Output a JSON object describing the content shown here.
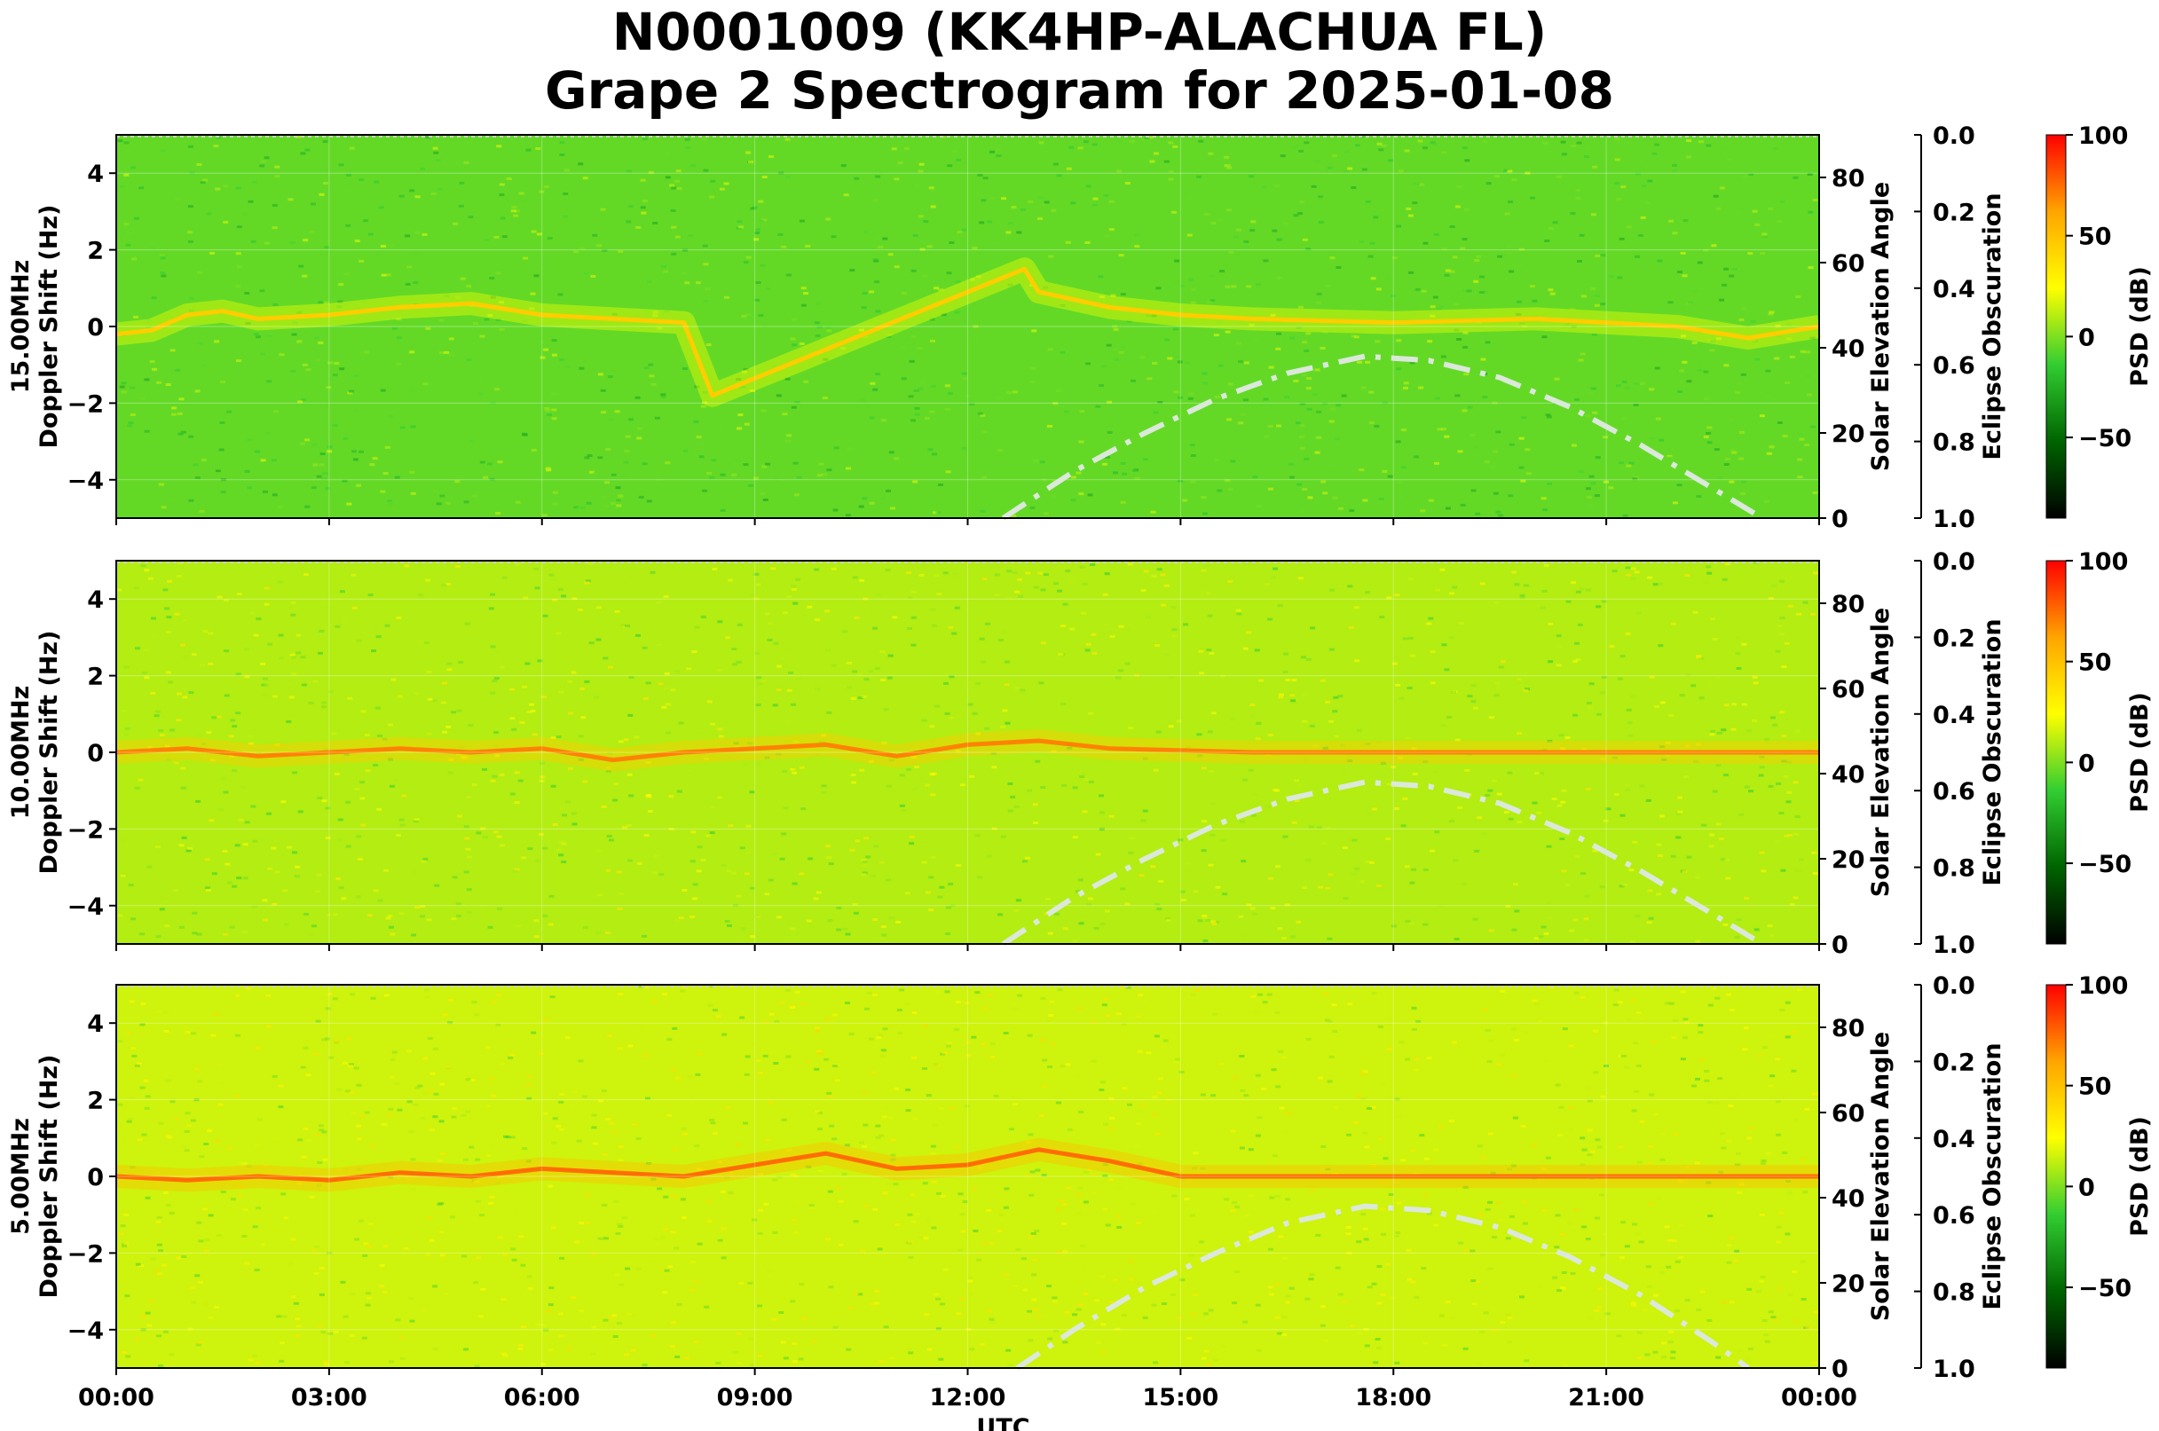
{
  "title": {
    "line1": "N0001009 (KK4HP-ALACHUA FL)",
    "line2": "Grape 2 Spectrogram for 2025-01-08"
  },
  "colors": {
    "colormap": [
      "#000000",
      "#006400",
      "#32CD32",
      "#FFFF00",
      "#FFA500",
      "#FF0000"
    ],
    "elevation_curve": "#dbe8db",
    "grid": "#ffffff"
  },
  "chart_data": [
    {
      "type": "heatmap",
      "panel_label": "15.00MHz",
      "ylabel": "Doppler Shift (Hz)",
      "xlabel": "",
      "y_ticks": [
        "−4",
        "−2",
        "0",
        "2",
        "4"
      ],
      "ylim": [
        -5,
        5
      ],
      "x_ticks": [
        "00:00",
        "03:00",
        "06:00",
        "09:00",
        "12:00",
        "15:00",
        "18:00",
        "21:00",
        "00:00"
      ],
      "xlim_hours": [
        0,
        24
      ],
      "right_axis_label": "Solar Elevation Angle",
      "right_axis_ticks": [
        "0",
        "20",
        "40",
        "60",
        "80"
      ],
      "right_axis_range": [
        0,
        90
      ],
      "eclipse_axis_label": "Eclipse Obscuration",
      "eclipse_axis_ticks": [
        "0.0",
        "0.2",
        "0.4",
        "0.6",
        "0.8",
        "1.0"
      ],
      "eclipse_axis_range": [
        0,
        1
      ],
      "colorbar_label": "PSD (dB)",
      "colorbar_ticks": [
        "100",
        "50",
        "0",
        "−50"
      ],
      "colorbar_range": [
        -90,
        100
      ],
      "background_psd": -5,
      "doppler_trace": [
        {
          "t": 0,
          "f": -0.2
        },
        {
          "t": 0.5,
          "f": -0.1
        },
        {
          "t": 1.0,
          "f": 0.3
        },
        {
          "t": 1.5,
          "f": 0.4
        },
        {
          "t": 2.0,
          "f": 0.2
        },
        {
          "t": 3.0,
          "f": 0.3
        },
        {
          "t": 4.0,
          "f": 0.5
        },
        {
          "t": 5.0,
          "f": 0.6
        },
        {
          "t": 6.0,
          "f": 0.3
        },
        {
          "t": 7.0,
          "f": 0.2
        },
        {
          "t": 8.0,
          "f": 0.1
        },
        {
          "t": 8.4,
          "f": -1.8
        },
        {
          "t": 12.8,
          "f": 1.5
        },
        {
          "t": 13.0,
          "f": 0.9
        },
        {
          "t": 14.0,
          "f": 0.5
        },
        {
          "t": 15.0,
          "f": 0.3
        },
        {
          "t": 16.0,
          "f": 0.2
        },
        {
          "t": 18.0,
          "f": 0.1
        },
        {
          "t": 20.0,
          "f": 0.2
        },
        {
          "t": 22.0,
          "f": 0.0
        },
        {
          "t": 23.0,
          "f": -0.3
        },
        {
          "t": 24.0,
          "f": 0.0
        }
      ],
      "trace_psd": 45,
      "solar_elevation": [
        {
          "t": 12.5,
          "e": 0
        },
        {
          "t": 13.5,
          "e": 11
        },
        {
          "t": 14.5,
          "e": 20
        },
        {
          "t": 15.5,
          "e": 28
        },
        {
          "t": 16.5,
          "e": 34
        },
        {
          "t": 17.6,
          "e": 38
        },
        {
          "t": 18.5,
          "e": 37
        },
        {
          "t": 19.5,
          "e": 33
        },
        {
          "t": 20.5,
          "e": 26
        },
        {
          "t": 21.5,
          "e": 17
        },
        {
          "t": 22.5,
          "e": 7
        },
        {
          "t": 23.2,
          "e": 0
        }
      ]
    },
    {
      "type": "heatmap",
      "panel_label": "10.00MHz",
      "ylabel": "Doppler Shift (Hz)",
      "xlabel": "",
      "y_ticks": [
        "−4",
        "−2",
        "0",
        "2",
        "4"
      ],
      "ylim": [
        -5,
        5
      ],
      "x_ticks": [
        "00:00",
        "03:00",
        "06:00",
        "09:00",
        "12:00",
        "15:00",
        "18:00",
        "21:00",
        "00:00"
      ],
      "xlim_hours": [
        0,
        24
      ],
      "right_axis_label": "Solar Elevation Angle",
      "right_axis_ticks": [
        "0",
        "20",
        "40",
        "60",
        "80"
      ],
      "right_axis_range": [
        0,
        90
      ],
      "eclipse_axis_label": "Eclipse Obscuration",
      "eclipse_axis_ticks": [
        "0.0",
        "0.2",
        "0.4",
        "0.6",
        "0.8",
        "1.0"
      ],
      "eclipse_axis_range": [
        0,
        1
      ],
      "colorbar_label": "PSD (dB)",
      "colorbar_ticks": [
        "100",
        "50",
        "0",
        "−50"
      ],
      "colorbar_range": [
        -90,
        100
      ],
      "background_psd": 10,
      "doppler_trace": [
        {
          "t": 0,
          "f": 0.0
        },
        {
          "t": 1.0,
          "f": 0.1
        },
        {
          "t": 2.0,
          "f": -0.1
        },
        {
          "t": 3.0,
          "f": 0.0
        },
        {
          "t": 4.0,
          "f": 0.1
        },
        {
          "t": 5.0,
          "f": 0.0
        },
        {
          "t": 6.0,
          "f": 0.1
        },
        {
          "t": 7.0,
          "f": -0.2
        },
        {
          "t": 8.0,
          "f": 0.0
        },
        {
          "t": 9.0,
          "f": 0.1
        },
        {
          "t": 10.0,
          "f": 0.2
        },
        {
          "t": 11.0,
          "f": -0.1
        },
        {
          "t": 12.0,
          "f": 0.2
        },
        {
          "t": 13.0,
          "f": 0.3
        },
        {
          "t": 14.0,
          "f": 0.1
        },
        {
          "t": 16.0,
          "f": 0.0
        },
        {
          "t": 18.0,
          "f": 0.0
        },
        {
          "t": 20.0,
          "f": 0.0
        },
        {
          "t": 22.0,
          "f": 0.0
        },
        {
          "t": 24.0,
          "f": 0.0
        }
      ],
      "trace_psd": 70,
      "solar_elevation": [
        {
          "t": 12.5,
          "e": 0
        },
        {
          "t": 13.5,
          "e": 11
        },
        {
          "t": 14.5,
          "e": 20
        },
        {
          "t": 15.5,
          "e": 28
        },
        {
          "t": 16.5,
          "e": 34
        },
        {
          "t": 17.6,
          "e": 38
        },
        {
          "t": 18.5,
          "e": 37
        },
        {
          "t": 19.5,
          "e": 33
        },
        {
          "t": 20.5,
          "e": 26
        },
        {
          "t": 21.5,
          "e": 17
        },
        {
          "t": 22.5,
          "e": 7
        },
        {
          "t": 23.2,
          "e": 0
        }
      ]
    },
    {
      "type": "heatmap",
      "panel_label": "5.00MHz",
      "ylabel": "Doppler Shift (Hz)",
      "xlabel": "UTC",
      "y_ticks": [
        "−4",
        "−2",
        "0",
        "2",
        "4"
      ],
      "ylim": [
        -5,
        5
      ],
      "x_ticks": [
        "00:00",
        "03:00",
        "06:00",
        "09:00",
        "12:00",
        "15:00",
        "18:00",
        "21:00",
        "00:00"
      ],
      "xlim_hours": [
        0,
        24
      ],
      "right_axis_label": "Solar Elevation Angle",
      "right_axis_ticks": [
        "0",
        "20",
        "40",
        "60",
        "80"
      ],
      "right_axis_range": [
        0,
        90
      ],
      "eclipse_axis_label": "Eclipse Obscuration",
      "eclipse_axis_ticks": [
        "0.0",
        "0.2",
        "0.4",
        "0.6",
        "0.8",
        "1.0"
      ],
      "eclipse_axis_range": [
        0,
        1
      ],
      "colorbar_label": "PSD (dB)",
      "colorbar_ticks": [
        "100",
        "50",
        "0",
        "−50"
      ],
      "colorbar_range": [
        -90,
        100
      ],
      "background_psd": 15,
      "doppler_trace": [
        {
          "t": 0,
          "f": 0.0
        },
        {
          "t": 1.0,
          "f": -0.1
        },
        {
          "t": 2.0,
          "f": 0.0
        },
        {
          "t": 3.0,
          "f": -0.1
        },
        {
          "t": 4.0,
          "f": 0.1
        },
        {
          "t": 5.0,
          "f": 0.0
        },
        {
          "t": 6.0,
          "f": 0.2
        },
        {
          "t": 7.0,
          "f": 0.1
        },
        {
          "t": 8.0,
          "f": 0.0
        },
        {
          "t": 9.0,
          "f": 0.3
        },
        {
          "t": 10.0,
          "f": 0.6
        },
        {
          "t": 11.0,
          "f": 0.2
        },
        {
          "t": 12.0,
          "f": 0.3
        },
        {
          "t": 13.0,
          "f": 0.7
        },
        {
          "t": 14.0,
          "f": 0.4
        },
        {
          "t": 15.0,
          "f": 0.0
        },
        {
          "t": 18.0,
          "f": 0.0
        },
        {
          "t": 21.0,
          "f": 0.0
        },
        {
          "t": 24.0,
          "f": 0.0
        }
      ],
      "trace_psd": 75,
      "solar_elevation": [
        {
          "t": 12.7,
          "e": 0
        },
        {
          "t": 13.5,
          "e": 9
        },
        {
          "t": 14.5,
          "e": 19
        },
        {
          "t": 15.5,
          "e": 27
        },
        {
          "t": 16.5,
          "e": 34
        },
        {
          "t": 17.6,
          "e": 38
        },
        {
          "t": 18.5,
          "e": 37
        },
        {
          "t": 19.5,
          "e": 33
        },
        {
          "t": 20.5,
          "e": 26
        },
        {
          "t": 21.5,
          "e": 17
        },
        {
          "t": 22.5,
          "e": 6
        },
        {
          "t": 23.0,
          "e": 0
        }
      ]
    }
  ]
}
